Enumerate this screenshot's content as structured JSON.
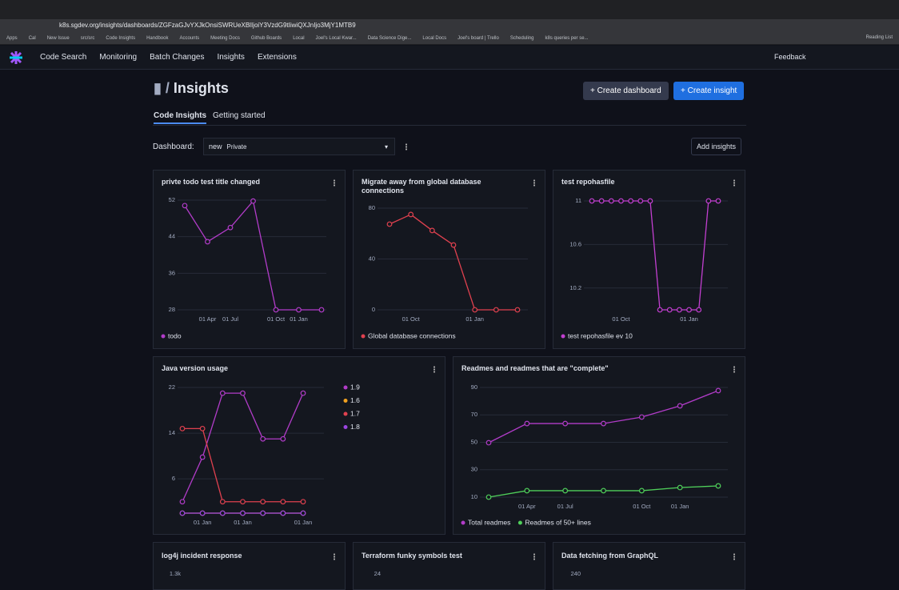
{
  "browser": {
    "url": "k8s.sgdev.org/insights/dashboards/ZGFzaGJvYXJkOnsiSWRUeXBlIjoiY3VzdG9tIiwiQXJnIjo3MjY1MTB9",
    "bookmarks": [
      "Apps",
      "Cal",
      "New Issue",
      "src/src",
      "Code Insights",
      "Handbook",
      "Accounts",
      "Meeting Docs",
      "Github Boards",
      "Local",
      "Joel's Local Kwar...",
      "Data Science Dige...",
      "Local Docs",
      "Joel's board | Trello",
      "Scheduling",
      "k8s queries per se..."
    ],
    "reading_list": "Reading List"
  },
  "nav": {
    "items": [
      "Code Search",
      "Monitoring",
      "Batch Changes",
      "Insights",
      "Extensions"
    ],
    "feedback": "Feedback"
  },
  "header": {
    "title": "Insights",
    "create_dashboard": "Create dashboard",
    "create_insight": "Create insight"
  },
  "tabs": [
    "Code Insights",
    "Getting started"
  ],
  "dashboard": {
    "label": "Dashboard:",
    "name": "new",
    "visibility": "Private",
    "add": "Add insights"
  },
  "chart_data": [
    {
      "type": "line",
      "title": "privte todo test title changed",
      "categories": [
        null,
        "01 Apr",
        "01 Jul",
        null,
        "01 Oct",
        "01 Jan",
        null
      ],
      "series": [
        {
          "name": "todo",
          "color": "#b23cc9",
          "values": [
            50.8,
            42.9,
            46,
            51.8,
            28,
            28,
            28
          ]
        }
      ],
      "ylim": [
        28,
        52
      ],
      "yticks": [
        28,
        36,
        44,
        52
      ],
      "grid": true,
      "legend": "bottom"
    },
    {
      "type": "line",
      "title": "Migrate away from global database connections",
      "categories": [
        null,
        "01 Oct",
        null,
        null,
        "01 Jan",
        null,
        null
      ],
      "series": [
        {
          "name": "Global database connections",
          "color": "#e0414f",
          "values": [
            67.4,
            75,
            62.4,
            51,
            0,
            0,
            0
          ]
        }
      ],
      "ylim": [
        0,
        80
      ],
      "yticks": [
        0,
        40,
        80
      ],
      "grid": true,
      "legend": "bottom"
    },
    {
      "type": "line",
      "title": "test repohasfile",
      "categories": [
        null,
        null,
        null,
        "01 Oct",
        null,
        null,
        null,
        null,
        null,
        null,
        "01 Jan",
        null,
        null,
        null
      ],
      "series": [
        {
          "name": "test repohasfile ev 10",
          "color": "#c23fd0",
          "values": [
            11,
            11,
            11,
            11,
            11,
            11,
            11,
            10,
            10,
            10,
            10,
            10,
            11,
            11
          ]
        }
      ],
      "ylim": [
        10,
        11
      ],
      "yticks": [
        10.2,
        10.6,
        11
      ],
      "grid": true,
      "legend": "bottom"
    },
    {
      "type": "line",
      "title": "Java version usage",
      "categories": [
        null,
        "01 Jan",
        null,
        "01 Jan",
        null,
        null,
        "01 Jan"
      ],
      "series": [
        {
          "name": "1.9",
          "color": "#b23cc9",
          "values": [
            2,
            9.8,
            21,
            21,
            13,
            13,
            21
          ]
        },
        {
          "name": "1.6",
          "color": "#f0a020",
          "values": [
            0,
            0,
            0,
            0,
            0,
            0,
            0
          ]
        },
        {
          "name": "1.7",
          "color": "#e0414f",
          "values": [
            14.8,
            14.8,
            2,
            2,
            2,
            2,
            2
          ]
        },
        {
          "name": "1.8",
          "color": "#9b45e0",
          "values": [
            0,
            0,
            0,
            0,
            0,
            0,
            0
          ]
        }
      ],
      "ylim": [
        0,
        22
      ],
      "yticks": [
        6,
        14,
        22
      ],
      "grid": true,
      "legend": "right"
    },
    {
      "type": "line",
      "title": "Readmes and readmes that are \"complete\"",
      "categories": [
        null,
        "01 Apr",
        "01 Jul",
        null,
        "01 Oct",
        "01 Jan",
        null
      ],
      "series": [
        {
          "name": "Total readmes",
          "color": "#b23cc9",
          "values": [
            49.7,
            63.7,
            63.7,
            63.7,
            68.4,
            76.6,
            87.7
          ]
        },
        {
          "name": "Readmes of 50+ lines",
          "color": "#4fcf5a",
          "values": [
            10,
            14.7,
            14.7,
            14.7,
            14.7,
            17,
            18.2
          ]
        }
      ],
      "ylim": [
        10,
        90
      ],
      "yticks": [
        10,
        30,
        50,
        70,
        90
      ],
      "grid": true,
      "legend": "bottom"
    }
  ],
  "partial_cards": [
    {
      "title": "log4j incident response",
      "top_tick": "1.3k"
    },
    {
      "title": "Terraform funky symbols test",
      "top_tick": "24"
    },
    {
      "title": "Data fetching from GraphQL",
      "top_tick": "240"
    }
  ]
}
